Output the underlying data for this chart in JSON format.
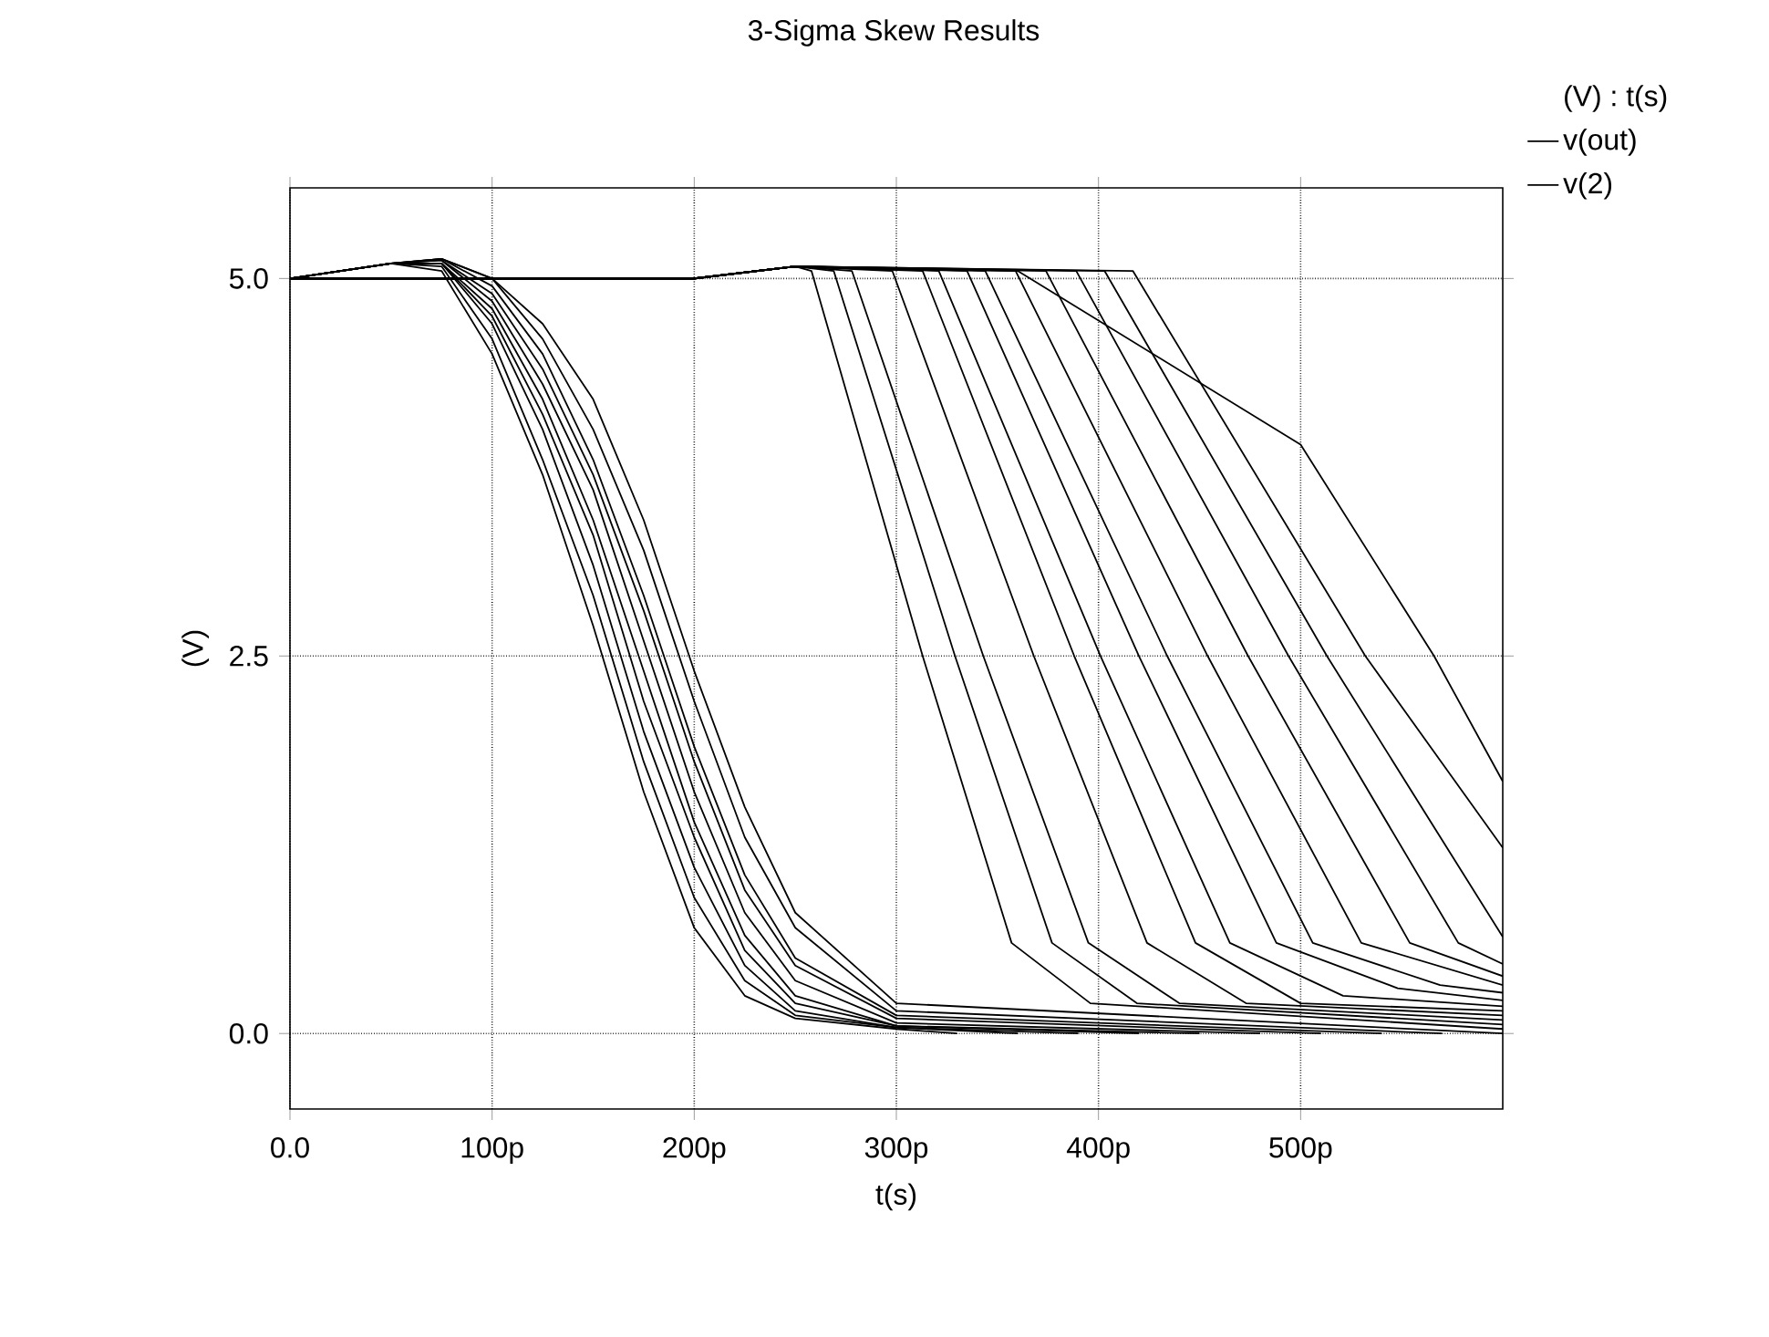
{
  "chart_data": {
    "type": "line",
    "title": "3-Sigma Skew Results",
    "xlabel": "t(s)",
    "ylabel": "(V)",
    "legend_title": "(V) : t(s)",
    "xlim": [
      0,
      600
    ],
    "ylim": [
      -0.5,
      5.6
    ],
    "xticks": [
      {
        "value": 0,
        "label": "0.0"
      },
      {
        "value": 100,
        "label": "100p"
      },
      {
        "value": 200,
        "label": "200p"
      },
      {
        "value": 300,
        "label": "300p"
      },
      {
        "value": 400,
        "label": "400p"
      },
      {
        "value": 500,
        "label": "500p"
      }
    ],
    "yticks": [
      {
        "value": 0,
        "label": "0.0"
      },
      {
        "value": 2.5,
        "label": "2.5"
      },
      {
        "value": 5,
        "label": "5.0"
      }
    ],
    "grid": true,
    "legend": "top right",
    "marker": "none",
    "line_style": "solid",
    "series": [
      {
        "name": "v(out)",
        "color": "#000000",
        "x": [
          0,
          200,
          250,
          258,
          313,
          357,
          396,
          600
        ],
        "values": [
          5.0,
          5.0,
          5.08,
          5.05,
          2.5,
          0.6,
          0.2,
          0.03
        ]
      },
      {
        "color": "#000000",
        "x": [
          0,
          200,
          250,
          269,
          329,
          377,
          419,
          600
        ],
        "values": [
          5.0,
          5.0,
          5.08,
          5.05,
          2.5,
          0.6,
          0.2,
          0.06
        ]
      },
      {
        "color": "#000000",
        "x": [
          0,
          200,
          250,
          278,
          343,
          395,
          440,
          600
        ],
        "values": [
          5.0,
          5.0,
          5.08,
          5.05,
          2.5,
          0.6,
          0.2,
          0.09
        ]
      },
      {
        "color": "#000000",
        "x": [
          0,
          200,
          250,
          298,
          368,
          424,
          473,
          600
        ],
        "values": [
          5.0,
          5.0,
          5.08,
          5.05,
          2.5,
          0.6,
          0.2,
          0.12
        ]
      },
      {
        "color": "#000000",
        "x": [
          0,
          200,
          250,
          313,
          388,
          448,
          500,
          600
        ],
        "values": [
          5.0,
          5.0,
          5.08,
          5.05,
          2.5,
          0.6,
          0.2,
          0.15
        ]
      },
      {
        "color": "#000000",
        "x": [
          0,
          200,
          250,
          321,
          401,
          465,
          521,
          600
        ],
        "values": [
          5.0,
          5.0,
          5.08,
          5.05,
          2.5,
          0.6,
          0.25,
          0.18
        ]
      },
      {
        "color": "#000000",
        "x": [
          0,
          200,
          250,
          335,
          420,
          488,
          548,
          600
        ],
        "values": [
          5.0,
          5.0,
          5.08,
          5.05,
          2.5,
          0.6,
          0.3,
          0.22
        ]
      },
      {
        "color": "#000000",
        "x": [
          0,
          200,
          250,
          344,
          434,
          506,
          569,
          600
        ],
        "values": [
          5.0,
          5.0,
          5.08,
          5.05,
          2.5,
          0.6,
          0.32,
          0.27
        ]
      },
      {
        "color": "#000000",
        "x": [
          0,
          200,
          250,
          359,
          454,
          530,
          600
        ],
        "values": [
          5.0,
          5.0,
          5.08,
          5.05,
          2.5,
          0.6,
          0.32
        ]
      },
      {
        "color": "#000000",
        "x": [
          0,
          200,
          250,
          374,
          474,
          554,
          600
        ],
        "values": [
          5.0,
          5.0,
          5.08,
          5.05,
          2.5,
          0.6,
          0.38
        ]
      },
      {
        "color": "#000000",
        "x": [
          0,
          200,
          250,
          389,
          494,
          578,
          600
        ],
        "values": [
          5.0,
          5.0,
          5.08,
          5.05,
          2.5,
          0.6,
          0.46
        ]
      },
      {
        "color": "#000000",
        "x": [
          0,
          200,
          250,
          403,
          513,
          600
        ],
        "values": [
          5.0,
          5.0,
          5.08,
          5.05,
          2.5,
          0.64
        ]
      },
      {
        "color": "#000000",
        "x": [
          0,
          200,
          250,
          417,
          532,
          600
        ],
        "values": [
          5.0,
          5.0,
          5.08,
          5.05,
          2.5,
          1.23
        ]
      },
      {
        "color": "#000000",
        "x": [
          0,
          200,
          250,
          360,
          500,
          566,
          600
        ],
        "values": [
          5.0,
          5.0,
          5.08,
          5.05,
          3.9,
          2.5,
          1.67
        ]
      },
      {
        "name": "v(2)",
        "color": "#000000",
        "x": [
          0,
          50,
          75,
          100,
          125,
          150,
          175,
          200,
          225,
          250,
          300,
          330
        ],
        "values": [
          5.0,
          5.1,
          5.05,
          4.5,
          3.7,
          2.7,
          1.6,
          0.7,
          0.25,
          0.1,
          0.03,
          0.0
        ]
      },
      {
        "color": "#000000",
        "x": [
          0,
          50,
          75,
          100,
          125,
          150,
          175,
          200,
          225,
          250,
          300,
          360
        ],
        "values": [
          5.0,
          5.1,
          5.08,
          4.6,
          3.8,
          2.9,
          1.8,
          0.9,
          0.35,
          0.12,
          0.04,
          0.0
        ]
      },
      {
        "color": "#000000",
        "x": [
          0,
          50,
          75,
          100,
          125,
          150,
          175,
          200,
          225,
          250,
          300,
          390
        ],
        "values": [
          5.0,
          5.1,
          5.1,
          4.7,
          4.0,
          3.1,
          2.0,
          1.1,
          0.45,
          0.15,
          0.04,
          0.0
        ]
      },
      {
        "color": "#000000",
        "x": [
          0,
          50,
          75,
          100,
          125,
          150,
          175,
          200,
          225,
          250,
          300,
          420
        ],
        "values": [
          5.0,
          5.1,
          5.1,
          4.75,
          4.1,
          3.3,
          2.2,
          1.3,
          0.55,
          0.2,
          0.05,
          0.0
        ]
      },
      {
        "color": "#000000",
        "x": [
          0,
          50,
          75,
          100,
          125,
          150,
          175,
          200,
          225,
          250,
          300,
          450
        ],
        "values": [
          5.0,
          5.1,
          5.1,
          4.8,
          4.2,
          3.4,
          2.4,
          1.4,
          0.65,
          0.25,
          0.05,
          0.0
        ]
      },
      {
        "color": "#000000",
        "x": [
          0,
          50,
          75,
          100,
          125,
          150,
          175,
          200,
          225,
          250,
          300,
          480
        ],
        "values": [
          5.0,
          5.1,
          5.12,
          4.85,
          4.3,
          3.6,
          2.6,
          1.6,
          0.8,
          0.35,
          0.07,
          0.0
        ]
      },
      {
        "color": "#000000",
        "x": [
          0,
          50,
          75,
          100,
          125,
          150,
          175,
          200,
          225,
          250,
          300,
          510
        ],
        "values": [
          5.0,
          5.1,
          5.12,
          4.9,
          4.4,
          3.7,
          2.8,
          1.8,
          0.95,
          0.45,
          0.1,
          0.0
        ]
      },
      {
        "color": "#000000",
        "x": [
          0,
          50,
          75,
          100,
          125,
          150,
          175,
          200,
          225,
          250,
          300,
          540
        ],
        "values": [
          5.0,
          5.1,
          5.13,
          4.95,
          4.5,
          3.8,
          2.9,
          1.9,
          1.05,
          0.5,
          0.12,
          0.0
        ]
      },
      {
        "color": "#000000",
        "x": [
          0,
          50,
          75,
          100,
          125,
          150,
          175,
          200,
          225,
          250,
          300,
          570
        ],
        "values": [
          5.0,
          5.1,
          5.13,
          5.0,
          4.6,
          4.0,
          3.2,
          2.2,
          1.3,
          0.7,
          0.15,
          0.0
        ]
      },
      {
        "color": "#000000",
        "x": [
          0,
          50,
          75,
          100,
          125,
          150,
          175,
          200,
          225,
          250,
          300,
          600
        ],
        "values": [
          5.0,
          5.1,
          5.13,
          5.0,
          4.7,
          4.2,
          3.4,
          2.4,
          1.5,
          0.8,
          0.2,
          0.0
        ]
      }
    ]
  }
}
